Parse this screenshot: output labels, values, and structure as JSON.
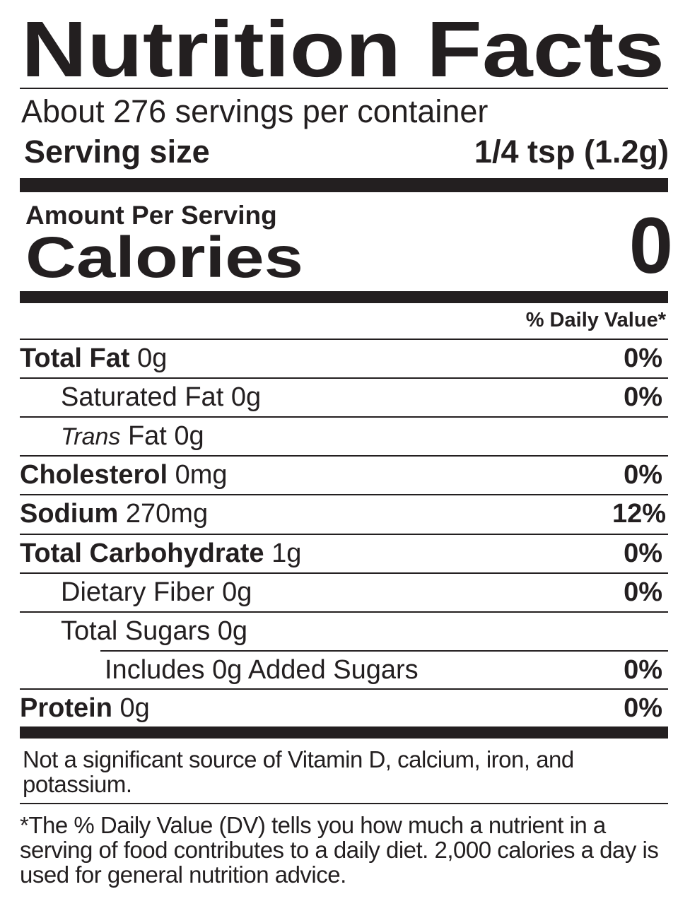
{
  "header": {
    "title": "Nutrition Facts",
    "servings": "About 276 servings per container",
    "serving_size": {
      "label": "Serving size",
      "value": "1/4 tsp (1.2g)"
    }
  },
  "calories": {
    "amount_per_serving": "Amount Per Serving",
    "label": "Calories",
    "value": "0"
  },
  "dv_header": "% Daily Value*",
  "rows": [
    {
      "label": "Total Fat",
      "amount": "0g",
      "dv": "0%"
    },
    {
      "label": "Saturated Fat",
      "amount": "0g",
      "dv": "0%"
    },
    {
      "italic": "Trans",
      "label": "Fat",
      "amount": "0g"
    },
    {
      "label": "Cholesterol",
      "amount": "0mg",
      "dv": "0%"
    },
    {
      "label": "Sodium",
      "amount": "270mg",
      "dv": "12%"
    },
    {
      "label": "Total Carbohydrate",
      "amount": "1g",
      "dv": "0%"
    },
    {
      "label": "Dietary Fiber",
      "amount": "0g",
      "dv": "0%"
    },
    {
      "label": "Total Sugars",
      "amount": "0g"
    },
    {
      "label": "Includes 0g Added Sugars",
      "dv": "0%"
    },
    {
      "label": "Protein",
      "amount": "0g",
      "dv": "0%"
    }
  ],
  "footer": {
    "note": "Not a significant source of Vitamin D, calcium, iron, and potassium.",
    "footnote": "*The % Daily Value (DV) tells you how much a nutrient in a serving of food contributes to a daily diet. 2,000 calories a day is used for general nutrition advice."
  }
}
